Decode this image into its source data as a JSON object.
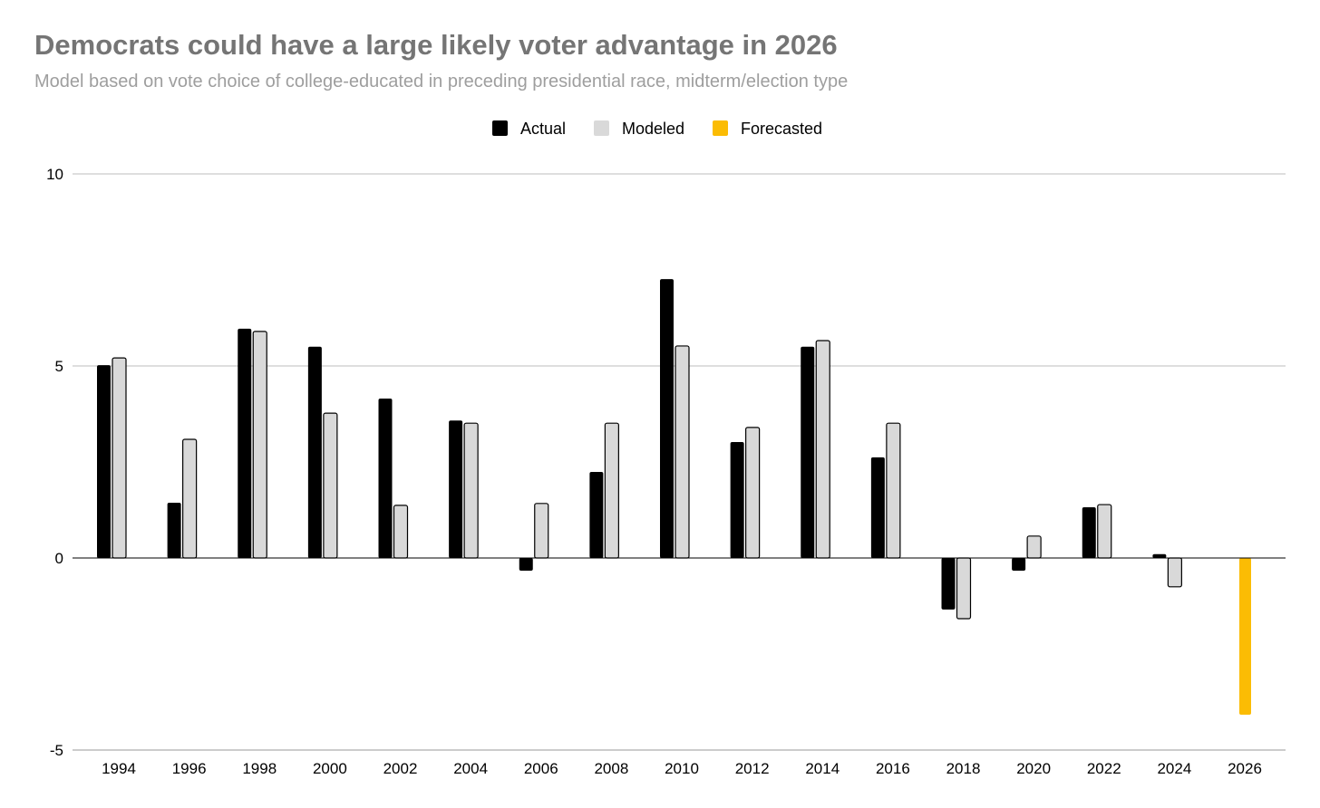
{
  "chart_data": {
    "type": "bar",
    "title": "Democrats could have a large likely voter advantage in 2026",
    "subtitle": "Model based on vote choice of college-educated in preceding presidential race, midterm/election type",
    "xlabel": "",
    "ylabel": "",
    "ylim": [
      -5,
      10
    ],
    "yticks": [
      "-5",
      "0",
      "5",
      "10"
    ],
    "grid": true,
    "legend_position": "top-center",
    "categories": [
      "1994",
      "1996",
      "1998",
      "2000",
      "2002",
      "2004",
      "2006",
      "2008",
      "2010",
      "2012",
      "2014",
      "2016",
      "2018",
      "2020",
      "2022",
      "2024",
      "2026"
    ],
    "series": [
      {
        "name": "Actual",
        "color": "#000000",
        "values": [
          5.02,
          1.44,
          5.97,
          5.5,
          4.15,
          3.58,
          -0.33,
          2.24,
          7.26,
          3.02,
          5.5,
          2.62,
          -1.34,
          -0.33,
          1.32,
          0.1,
          null
        ]
      },
      {
        "name": "Modeled",
        "color": "#d9d9d9",
        "values": [
          5.21,
          3.09,
          5.9,
          3.77,
          1.37,
          3.51,
          1.42,
          3.51,
          5.52,
          3.4,
          5.66,
          3.51,
          -1.58,
          0.57,
          1.39,
          -0.75,
          null
        ]
      },
      {
        "name": "Forecasted",
        "color": "#fbbc04",
        "values": [
          null,
          null,
          null,
          null,
          null,
          null,
          null,
          null,
          null,
          null,
          null,
          null,
          null,
          null,
          null,
          null,
          -4.08
        ]
      }
    ]
  }
}
